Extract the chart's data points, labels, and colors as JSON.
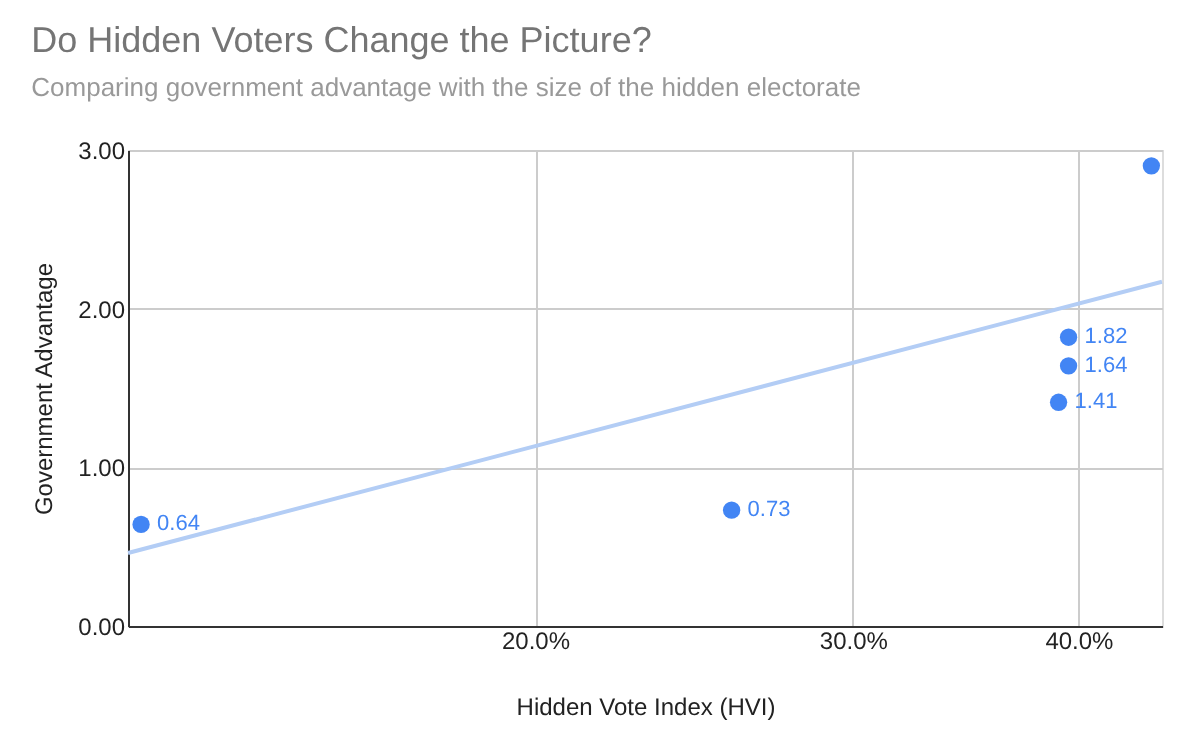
{
  "chart_data": {
    "type": "scatter",
    "title": "Do Hidden Voters Change the Picture?",
    "subtitle": "Comparing government advantage with the size of the hidden electorate",
    "xlabel": "Hidden Vote Index (HVI)",
    "ylabel": "Government Advantage",
    "log": "x",
    "xlim": [
      11.9,
      44.5
    ],
    "xticks": [
      {
        "value": 20,
        "label": "20.0%"
      },
      {
        "value": 30,
        "label": "30.0%"
      },
      {
        "value": 40,
        "label": "40.0%"
      }
    ],
    "ylim": [
      0,
      3
    ],
    "yticks": [
      {
        "value": 0,
        "label": "0.00"
      },
      {
        "value": 1,
        "label": "1.00"
      },
      {
        "value": 2,
        "label": "2.00"
      },
      {
        "value": 3,
        "label": "3.00"
      }
    ],
    "grid": true,
    "legend": false,
    "series": [
      {
        "marker": "circle",
        "color": "#4285f4",
        "x": [
          12.1,
          25.7,
          39.0,
          39.5,
          39.5,
          43.9
        ],
        "values": [
          0.64,
          0.73,
          1.41,
          1.64,
          1.82,
          2.9
        ],
        "value_labels": [
          "0.64",
          "0.73",
          "1.41",
          "1.64",
          "1.82",
          null
        ]
      },
      {
        "type": "line",
        "marker": "none",
        "color": "#b3cdf5",
        "line_style": "solid",
        "x": [
          11.9,
          44.5
        ],
        "values": [
          0.46,
          2.17
        ]
      }
    ]
  }
}
